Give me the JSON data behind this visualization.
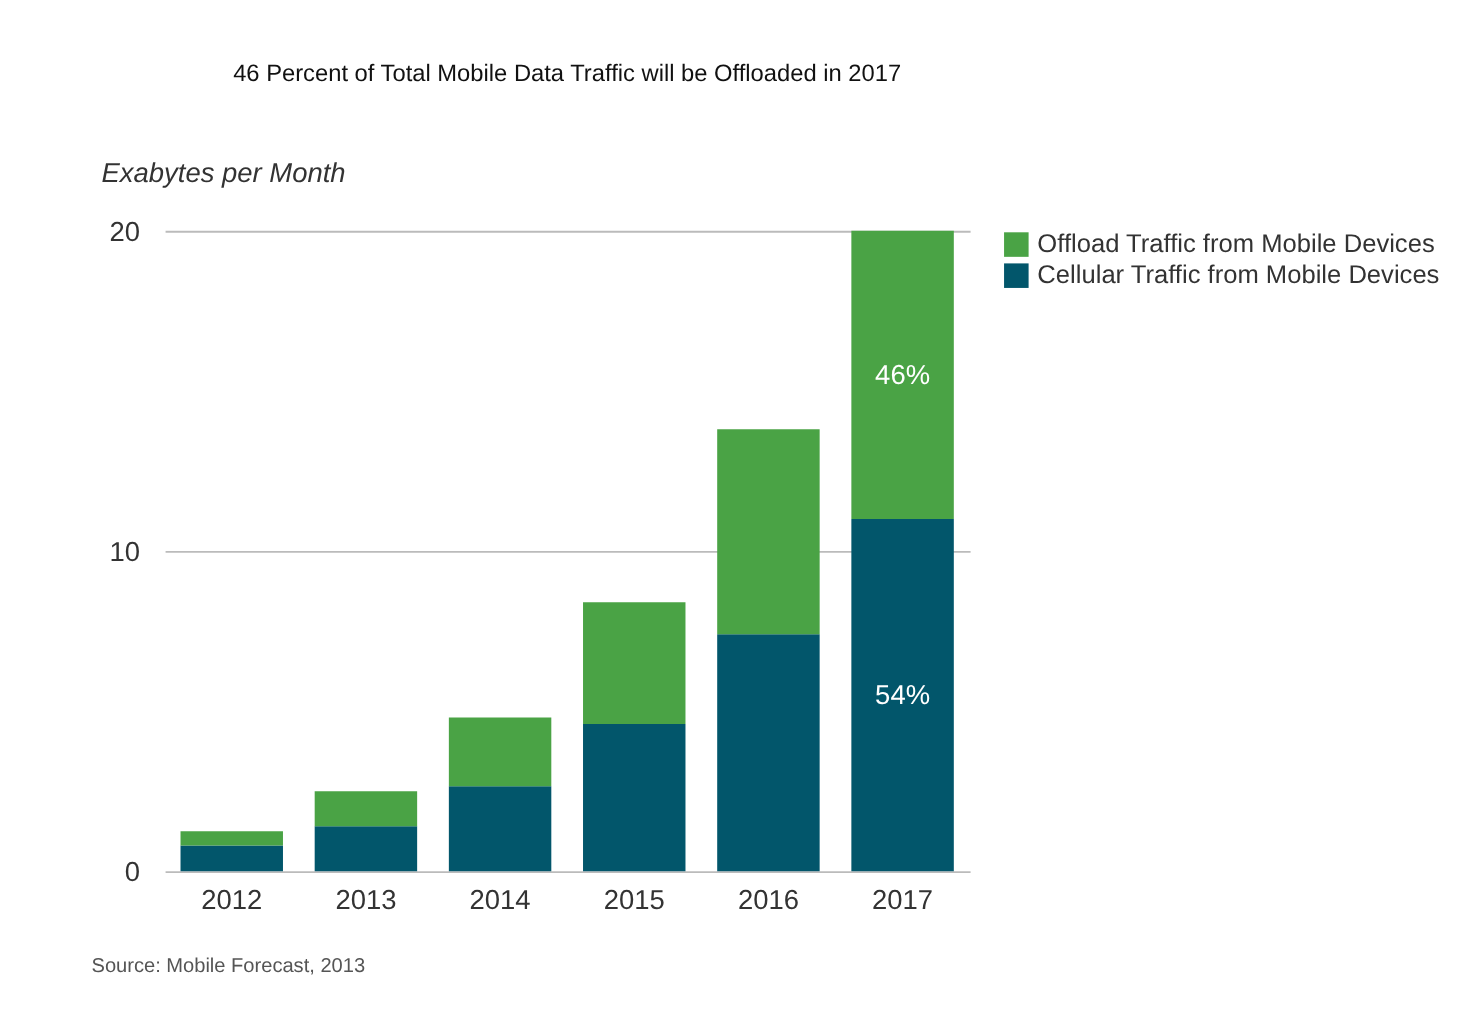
{
  "chart_data": {
    "type": "bar",
    "title": "46 Percent of Total Mobile Data Traffic will be Offloaded in 2017",
    "ylabel": "Exabytes per Month",
    "categories": [
      "2012",
      "2013",
      "2014",
      "2015",
      "2016",
      "2017"
    ],
    "stacked": true,
    "series": [
      {
        "name": "Cellular Traffic from Mobile Devices",
        "color": "#02566b",
        "values": [
          0.8,
          1.4,
          2.65,
          4.6,
          7.4,
          11.0
        ]
      },
      {
        "name": "Offload Traffic from Mobile Devices",
        "color": "#4aa345",
        "values": [
          0.45,
          1.1,
          2.15,
          3.8,
          6.4,
          9.0
        ]
      }
    ],
    "ylim": [
      0,
      20
    ],
    "yticks": [
      0,
      10,
      20
    ],
    "grid": "y",
    "legend": "top right",
    "annotations": [
      "46%",
      "54%",
      "Source: Mobile Forecast, 2013"
    ]
  }
}
